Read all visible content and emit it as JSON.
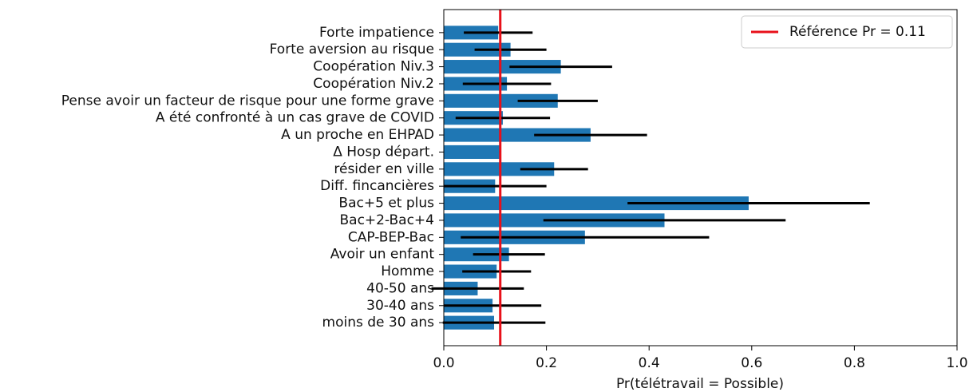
{
  "chart_data": {
    "type": "barh",
    "categories": [
      "Forte impatience",
      "Forte aversion au risque",
      "Coopération Niv.3",
      "Coopération Niv.2",
      "Pense avoir un facteur de risque pour une forme grave",
      "A été confronté à un cas grave de COVID",
      "A un proche en EHPAD",
      "Δ Hosp départ.",
      "résider en ville",
      "Diff. fincancières",
      "Bac+5 et plus",
      "Bac+2-Bac+4",
      "CAP-BEP-Bac",
      "Avoir un enfant",
      "Homme",
      "40-50 ans",
      "30-40 ans",
      "moins de 30 ans"
    ],
    "values": [
      0.106,
      0.13,
      0.228,
      0.123,
      0.222,
      0.115,
      0.286,
      0.11,
      0.215,
      0.1,
      0.594,
      0.43,
      0.275,
      0.127,
      0.103,
      0.066,
      0.095,
      0.098
    ],
    "errors": [
      0.067,
      0.07,
      0.1,
      0.086,
      0.078,
      0.092,
      0.11,
      0.002,
      0.066,
      0.1,
      0.236,
      0.236,
      0.242,
      0.07,
      0.067,
      0.09,
      0.095,
      0.1
    ],
    "color": "#1f77b4",
    "error_color": "#000000",
    "reference": {
      "value": 0.11,
      "label": "Référence Pr = 0.11",
      "color": "#e8101a"
    },
    "xlabel": "Pr(télétravail = Possible)",
    "xlim": [
      0,
      1
    ],
    "xticks": [
      {
        "value": 0,
        "label": "0.0"
      },
      0.2,
      0.4,
      0.6,
      0.8,
      {
        "value": 1,
        "label": "1.0"
      }
    ],
    "legend": "upper right"
  }
}
